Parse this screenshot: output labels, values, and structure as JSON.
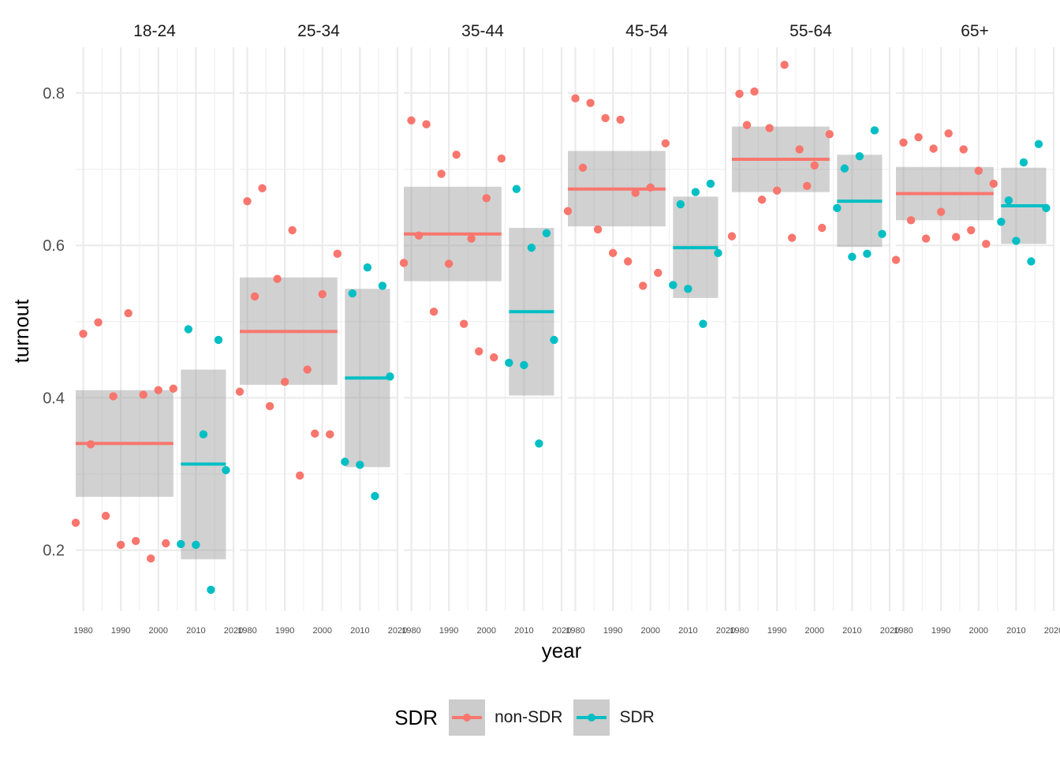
{
  "chart_data": {
    "type": "scatter",
    "xlabel": "year",
    "ylabel": "turnout",
    "xlim": [
      1978,
      2020
    ],
    "ylim": [
      0.12,
      0.86
    ],
    "y_ticks": [
      "0.2",
      "0.4",
      "0.6",
      "0.8"
    ],
    "y_tick_values": [
      0.2,
      0.4,
      0.6,
      0.8
    ],
    "x_ticks": [
      "1980",
      "1990",
      "2000",
      "2010",
      "2020"
    ],
    "x_tick_values": [
      1980,
      1990,
      2000,
      2010,
      2020
    ],
    "colors": {
      "non-SDR": "#F8766D",
      "SDR": "#00BFC4",
      "ribbon": "#999999"
    },
    "legend": {
      "title": "SDR",
      "entries": [
        "non-SDR",
        "SDR"
      ]
    },
    "panels": [
      {
        "label": "18-24",
        "non_sdr": {
          "mean": 0.34,
          "lower": 0.27,
          "upper": 0.41,
          "x_start": 1978,
          "x_end": 2004,
          "points": [
            [
              1978,
              0.236
            ],
            [
              1980,
              0.484
            ],
            [
              1982,
              0.339
            ],
            [
              1984,
              0.499
            ],
            [
              1986,
              0.245
            ],
            [
              1988,
              0.402
            ],
            [
              1990,
              0.207
            ],
            [
              1992,
              0.511
            ],
            [
              1994,
              0.212
            ],
            [
              1996,
              0.404
            ],
            [
              1998,
              0.189
            ],
            [
              2000,
              0.41
            ],
            [
              2002,
              0.209
            ],
            [
              2004,
              0.412
            ]
          ]
        },
        "sdr": {
          "mean": 0.313,
          "lower": 0.188,
          "upper": 0.437,
          "x_start": 2006,
          "x_end": 2018,
          "points": [
            [
              2006,
              0.208
            ],
            [
              2008,
              0.49
            ],
            [
              2010,
              0.207
            ],
            [
              2012,
              0.352
            ],
            [
              2014,
              0.148
            ],
            [
              2016,
              0.476
            ],
            [
              2018,
              0.305
            ]
          ]
        }
      },
      {
        "label": "25-34",
        "non_sdr": {
          "mean": 0.487,
          "lower": 0.417,
          "upper": 0.558,
          "x_start": 1978,
          "x_end": 2004,
          "points": [
            [
              1978,
              0.408
            ],
            [
              1980,
              0.658
            ],
            [
              1982,
              0.533
            ],
            [
              1984,
              0.675
            ],
            [
              1986,
              0.389
            ],
            [
              1988,
              0.556
            ],
            [
              1990,
              0.421
            ],
            [
              1992,
              0.62
            ],
            [
              1994,
              0.298
            ],
            [
              1996,
              0.437
            ],
            [
              1998,
              0.353
            ],
            [
              2000,
              0.536
            ],
            [
              2002,
              0.352
            ],
            [
              2004,
              0.589
            ]
          ]
        },
        "sdr": {
          "mean": 0.426,
          "lower": 0.309,
          "upper": 0.543,
          "x_start": 2006,
          "x_end": 2018,
          "points": [
            [
              2006,
              0.316
            ],
            [
              2008,
              0.537
            ],
            [
              2010,
              0.312
            ],
            [
              2012,
              0.571
            ],
            [
              2014,
              0.271
            ],
            [
              2016,
              0.547
            ],
            [
              2018,
              0.428
            ]
          ]
        }
      },
      {
        "label": "35-44",
        "non_sdr": {
          "mean": 0.615,
          "lower": 0.553,
          "upper": 0.677,
          "x_start": 1978,
          "x_end": 2004,
          "points": [
            [
              1978,
              0.577
            ],
            [
              1980,
              0.764
            ],
            [
              1982,
              0.613
            ],
            [
              1984,
              0.759
            ],
            [
              1986,
              0.513
            ],
            [
              1988,
              0.694
            ],
            [
              1990,
              0.576
            ],
            [
              1992,
              0.719
            ],
            [
              1994,
              0.497
            ],
            [
              1996,
              0.609
            ],
            [
              1998,
              0.461
            ],
            [
              2000,
              0.662
            ],
            [
              2002,
              0.453
            ],
            [
              2004,
              0.714
            ]
          ]
        },
        "sdr": {
          "mean": 0.513,
          "lower": 0.403,
          "upper": 0.623,
          "x_start": 2006,
          "x_end": 2018,
          "points": [
            [
              2006,
              0.446
            ],
            [
              2008,
              0.674
            ],
            [
              2010,
              0.443
            ],
            [
              2012,
              0.597
            ],
            [
              2014,
              0.34
            ],
            [
              2016,
              0.616
            ],
            [
              2018,
              0.476
            ]
          ]
        }
      },
      {
        "label": "45-54",
        "non_sdr": {
          "mean": 0.674,
          "lower": 0.625,
          "upper": 0.724,
          "x_start": 1978,
          "x_end": 2004,
          "points": [
            [
              1978,
              0.645
            ],
            [
              1980,
              0.793
            ],
            [
              1982,
              0.702
            ],
            [
              1984,
              0.787
            ],
            [
              1986,
              0.621
            ],
            [
              1988,
              0.767
            ],
            [
              1990,
              0.59
            ],
            [
              1992,
              0.765
            ],
            [
              1994,
              0.579
            ],
            [
              1996,
              0.669
            ],
            [
              1998,
              0.547
            ],
            [
              2000,
              0.676
            ],
            [
              2002,
              0.564
            ],
            [
              2004,
              0.734
            ]
          ]
        },
        "sdr": {
          "mean": 0.597,
          "lower": 0.531,
          "upper": 0.664,
          "x_start": 2006,
          "x_end": 2018,
          "points": [
            [
              2006,
              0.548
            ],
            [
              2008,
              0.654
            ],
            [
              2010,
              0.543
            ],
            [
              2012,
              0.67
            ],
            [
              2014,
              0.497
            ],
            [
              2016,
              0.681
            ],
            [
              2018,
              0.59
            ]
          ]
        }
      },
      {
        "label": "55-64",
        "non_sdr": {
          "mean": 0.713,
          "lower": 0.67,
          "upper": 0.756,
          "x_start": 1978,
          "x_end": 2004,
          "points": [
            [
              1978,
              0.612
            ],
            [
              1980,
              0.799
            ],
            [
              1982,
              0.758
            ],
            [
              1984,
              0.802
            ],
            [
              1986,
              0.66
            ],
            [
              1988,
              0.754
            ],
            [
              1990,
              0.672
            ],
            [
              1992,
              0.837
            ],
            [
              1994,
              0.61
            ],
            [
              1996,
              0.726
            ],
            [
              1998,
              0.678
            ],
            [
              2000,
              0.705
            ],
            [
              2002,
              0.623
            ],
            [
              2004,
              0.746
            ]
          ]
        },
        "sdr": {
          "mean": 0.658,
          "lower": 0.598,
          "upper": 0.719,
          "x_start": 2006,
          "x_end": 2018,
          "points": [
            [
              2006,
              0.649
            ],
            [
              2008,
              0.701
            ],
            [
              2010,
              0.585
            ],
            [
              2012,
              0.717
            ],
            [
              2014,
              0.589
            ],
            [
              2016,
              0.751
            ],
            [
              2018,
              0.615
            ]
          ]
        }
      },
      {
        "label": "65+",
        "non_sdr": {
          "mean": 0.668,
          "lower": 0.633,
          "upper": 0.703,
          "x_start": 1978,
          "x_end": 2004,
          "points": [
            [
              1978,
              0.581
            ],
            [
              1980,
              0.735
            ],
            [
              1982,
              0.633
            ],
            [
              1984,
              0.742
            ],
            [
              1986,
              0.609
            ],
            [
              1988,
              0.727
            ],
            [
              1990,
              0.644
            ],
            [
              1992,
              0.747
            ],
            [
              1994,
              0.611
            ],
            [
              1996,
              0.726
            ],
            [
              1998,
              0.62
            ],
            [
              2000,
              0.698
            ],
            [
              2002,
              0.602
            ],
            [
              2004,
              0.681
            ]
          ]
        },
        "sdr": {
          "mean": 0.652,
          "lower": 0.602,
          "upper": 0.702,
          "x_start": 2006,
          "x_end": 2018,
          "points": [
            [
              2006,
              0.631
            ],
            [
              2008,
              0.659
            ],
            [
              2010,
              0.606
            ],
            [
              2012,
              0.709
            ],
            [
              2014,
              0.579
            ],
            [
              2016,
              0.733
            ],
            [
              2018,
              0.649
            ]
          ]
        }
      }
    ]
  }
}
